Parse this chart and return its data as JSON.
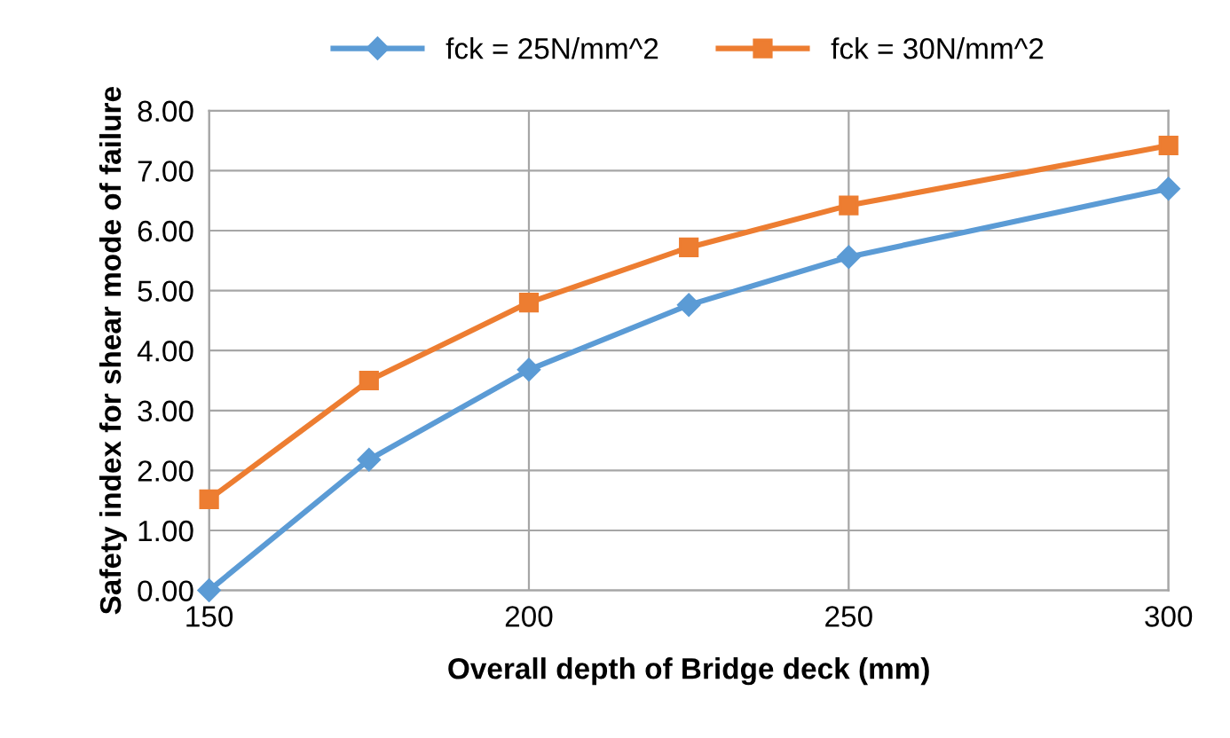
{
  "chart_data": {
    "type": "line",
    "xlabel": "Overall depth of Bridge deck (mm)",
    "ylabel": "Safety index for shear mode of failure",
    "x": [
      150,
      175,
      200,
      225,
      250,
      300
    ],
    "series": [
      {
        "name": "fck = 25N/mm^2",
        "color": "#5b9bd5",
        "marker": "diamond",
        "values": [
          0.0,
          2.18,
          3.68,
          4.76,
          5.56,
          6.7
        ]
      },
      {
        "name": "fck = 30N/mm^2",
        "color": "#ed7d31",
        "marker": "square",
        "values": [
          1.52,
          3.5,
          4.8,
          5.72,
          6.42,
          7.42
        ]
      }
    ],
    "xlim": [
      150,
      300
    ],
    "xticks": [
      150,
      200,
      250,
      300
    ],
    "ylim": [
      0,
      8
    ],
    "yticks": [
      {
        "value": 0,
        "label": "0.00"
      },
      {
        "value": 1,
        "label": "1.00"
      },
      {
        "value": 2,
        "label": "2.00"
      },
      {
        "value": 3,
        "label": "3.00"
      },
      {
        "value": 4,
        "label": "4.00"
      },
      {
        "value": 5,
        "label": "5.00"
      },
      {
        "value": 6,
        "label": "6.00"
      },
      {
        "value": 7,
        "label": "7.00"
      },
      {
        "value": 8,
        "label": "8.00"
      }
    ],
    "grid": true,
    "legend": "top",
    "line_style": "solid"
  }
}
